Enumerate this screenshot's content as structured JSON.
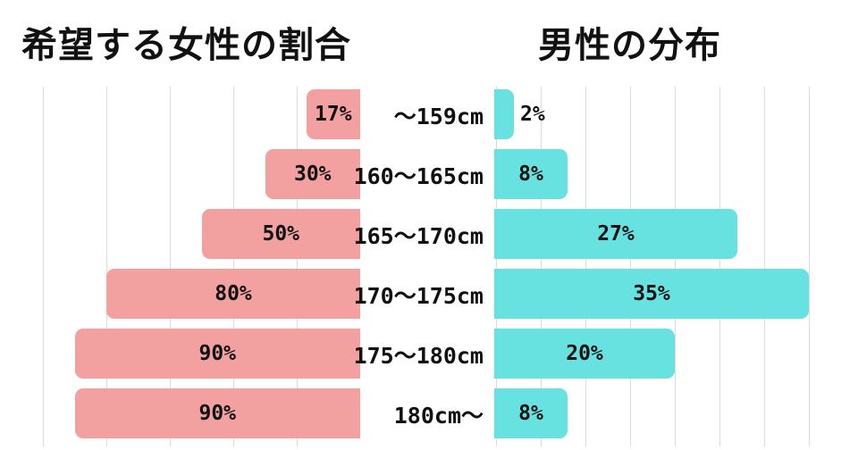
{
  "titles": {
    "left": "希望する女性の割合",
    "right": "男性の分布"
  },
  "chart_data": {
    "type": "bar",
    "layout": "two-sided horizontal pyramid, shared category axis in center",
    "title_left": "希望する女性の割合",
    "title_right": "男性の分布",
    "categories": [
      "～159cm",
      "160～165cm",
      "165～170cm",
      "170～175cm",
      "175～180cm",
      "180cm～"
    ],
    "series": [
      {
        "name": "希望する女性の割合",
        "side": "left",
        "values": [
          17,
          30,
          50,
          80,
          90,
          90
        ],
        "labels": [
          "17%",
          "30%",
          "50%",
          "80%",
          "90%",
          "90%"
        ],
        "color": "#F2A0A0",
        "axis_max": 100,
        "grid_step": 20,
        "unit": "%"
      },
      {
        "name": "男性の分布",
        "side": "right",
        "values": [
          2,
          8,
          27,
          35,
          20,
          8
        ],
        "labels": [
          "2%",
          "8%",
          "27%",
          "35%",
          "20%",
          "8%"
        ],
        "color": "#68E1E1",
        "axis_max": 35,
        "grid_step": 5,
        "unit": "%"
      }
    ],
    "grid": true,
    "grid_color": "#dbdbdb",
    "label_color": "#111111",
    "background": "#ffffff",
    "legend": "none (titles above each side act as series labels)"
  }
}
